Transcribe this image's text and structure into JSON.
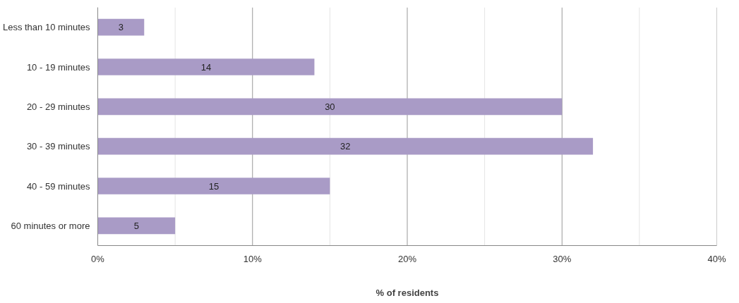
{
  "chart_data": {
    "type": "bar",
    "orientation": "horizontal",
    "xlabel": "% of residents",
    "categories": [
      "Less than 10 minutes",
      "10 - 19 minutes",
      "20 - 29 minutes",
      "30 - 39 minutes",
      "40 - 59 minutes",
      "60 minutes or more"
    ],
    "values": [
      3,
      14,
      30,
      32,
      15,
      5
    ],
    "color": "#a99bc6",
    "data_labels": true,
    "xlim": [
      0,
      40
    ],
    "xticks": [
      {
        "value": 0,
        "label": "0%"
      },
      {
        "value": 5,
        "label": null
      },
      {
        "value": 10,
        "label": "10%"
      },
      {
        "value": 15,
        "label": null
      },
      {
        "value": 20,
        "label": "20%"
      },
      {
        "value": 25,
        "label": null
      },
      {
        "value": 30,
        "label": "30%"
      },
      {
        "value": 35,
        "label": null
      },
      {
        "value": 40,
        "label": "40%"
      }
    ],
    "grid": "x"
  }
}
